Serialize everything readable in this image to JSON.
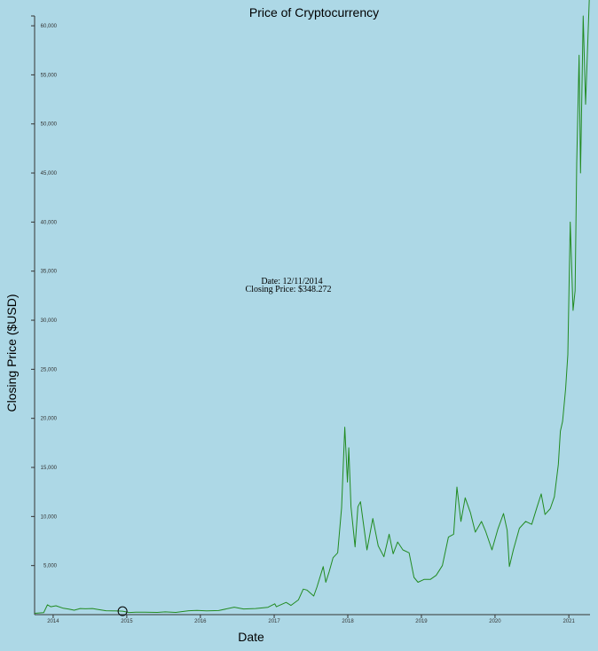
{
  "chart_data": {
    "type": "line",
    "title": "Price of Cryptocurrency",
    "xlabel": "Date",
    "ylabel": "Closing Price ($USD)",
    "xlim": [
      "2013-10-01",
      "2021-04-16"
    ],
    "ylim": [
      0,
      61000
    ],
    "x_ticks": [
      "2014",
      "2015",
      "2016",
      "2017",
      "2018",
      "2019",
      "2020",
      "2021"
    ],
    "y_ticks": [
      {
        "value": 5000,
        "label": "5,000"
      },
      {
        "value": 10000,
        "label": "10,000"
      },
      {
        "value": 15000,
        "label": "15,000"
      },
      {
        "value": 20000,
        "label": "20,000"
      },
      {
        "value": 25000,
        "label": "25,000"
      },
      {
        "value": 30000,
        "label": "30,000"
      },
      {
        "value": 35000,
        "label": "35,000"
      },
      {
        "value": 40000,
        "label": "40,000"
      },
      {
        "value": 45000,
        "label": "45,000"
      },
      {
        "value": 50000,
        "label": "50,000"
      },
      {
        "value": 55000,
        "label": "55,000"
      },
      {
        "value": 60000,
        "label": "60,000"
      }
    ],
    "grid": false,
    "line_color": "#228b22",
    "series": [
      {
        "x": [
          "2013-10-01",
          "2013-11-15",
          "2013-12-04",
          "2013-12-20",
          "2014-01-15",
          "2014-02-20",
          "2014-03-20",
          "2014-04-15",
          "2014-05-15",
          "2014-06-10",
          "2014-07-15",
          "2014-08-20",
          "2014-09-20",
          "2014-10-20",
          "2014-11-20",
          "2014-12-11",
          "2015-01-14",
          "2015-02-15",
          "2015-04-01",
          "2015-06-01",
          "2015-07-10",
          "2015-09-01",
          "2015-11-04",
          "2015-12-15",
          "2016-02-01",
          "2016-04-01",
          "2016-06-17",
          "2016-08-02",
          "2016-10-01",
          "2016-12-01",
          "2017-01-04",
          "2017-01-12",
          "2017-03-01",
          "2017-03-25",
          "2017-05-01",
          "2017-05-25",
          "2017-06-12",
          "2017-07-16",
          "2017-08-01",
          "2017-09-01",
          "2017-09-14",
          "2017-10-01",
          "2017-10-20",
          "2017-11-12",
          "2017-12-01",
          "2017-12-17",
          "2017-12-30",
          "2018-01-06",
          "2018-01-17",
          "2018-02-06",
          "2018-02-20",
          "2018-03-05",
          "2018-04-06",
          "2018-05-05",
          "2018-06-01",
          "2018-06-29",
          "2018-07-25",
          "2018-08-14",
          "2018-09-05",
          "2018-10-01",
          "2018-11-01",
          "2018-11-25",
          "2018-12-15",
          "2019-01-15",
          "2019-02-15",
          "2019-03-15",
          "2019-04-15",
          "2019-05-15",
          "2019-06-10",
          "2019-06-26",
          "2019-07-16",
          "2019-08-06",
          "2019-09-01",
          "2019-09-25",
          "2019-10-26",
          "2019-11-15",
          "2019-12-17",
          "2020-01-15",
          "2020-02-12",
          "2020-03-01",
          "2020-03-12",
          "2020-04-01",
          "2020-05-01",
          "2020-06-01",
          "2020-07-01",
          "2020-07-28",
          "2020-08-17",
          "2020-09-05",
          "2020-10-01",
          "2020-10-21",
          "2020-11-10",
          "2020-11-20",
          "2020-12-01",
          "2020-12-16",
          "2020-12-27",
          "2021-01-08",
          "2021-01-22",
          "2021-02-01",
          "2021-02-09",
          "2021-02-21",
          "2021-02-28",
          "2021-03-13",
          "2021-03-25",
          "2021-04-13"
        ],
        "values": [
          140,
          200,
          1000,
          800,
          900,
          650,
          570,
          450,
          620,
          600,
          620,
          500,
          400,
          380,
          370,
          348,
          220,
          240,
          250,
          230,
          280,
          230,
          400,
          430,
          380,
          420,
          760,
          580,
          620,
          750,
          1100,
          800,
          1250,
          940,
          1500,
          2600,
          2500,
          1900,
          2800,
          4900,
          3300,
          4400,
          5800,
          6300,
          10900,
          19100,
          13500,
          17000,
          11000,
          6900,
          11000,
          11500,
          6600,
          9800,
          7000,
          5900,
          8200,
          6200,
          7400,
          6600,
          6300,
          3800,
          3300,
          3600,
          3600,
          4000,
          5000,
          7900,
          8200,
          13000,
          9500,
          11900,
          10400,
          8400,
          9500,
          8500,
          6600,
          8700,
          10300,
          8600,
          4900,
          6600,
          8800,
          9500,
          9200,
          11000,
          12300,
          10200,
          10800,
          12000,
          15300,
          18700,
          19700,
          23000,
          26500,
          40000,
          31000,
          33000,
          46000,
          57000,
          45000,
          61000,
          52000,
          63000
        ]
      }
    ],
    "tooltip": {
      "date_line": "Date: 12/11/2014",
      "price_line": "Closing Price: $348.272",
      "marker": {
        "x": "2014-12-11",
        "y": 348.272
      }
    }
  }
}
